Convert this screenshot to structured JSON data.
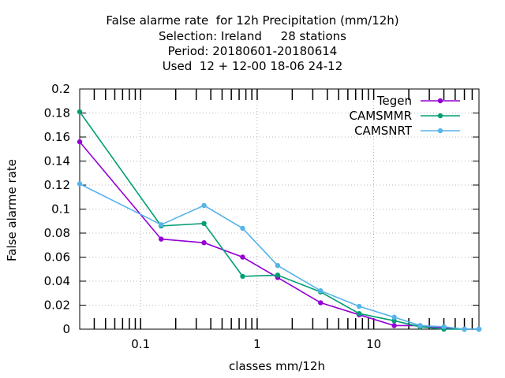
{
  "chart_data": {
    "type": "line",
    "title_lines": [
      "False alarme rate  for 12h Precipitation (mm/12h)",
      "Selection: Ireland     28 stations",
      "Period: 20180601-20180614",
      "Used  12 + 12-00 18-06 24-12"
    ],
    "xlabel": "classes mm/12h",
    "ylabel": "False alarme rate",
    "x_scale": "log",
    "xlim": [
      0.03,
      80
    ],
    "ylim": [
      0,
      0.2
    ],
    "x_ticks": [
      {
        "value": 0.1,
        "label": "0.1"
      },
      {
        "value": 1,
        "label": "1"
      },
      {
        "value": 10,
        "label": "10"
      }
    ],
    "y_ticks": [
      {
        "value": 0,
        "label": "0"
      },
      {
        "value": 0.02,
        "label": "0.02"
      },
      {
        "value": 0.04,
        "label": "0.04"
      },
      {
        "value": 0.06,
        "label": "0.06"
      },
      {
        "value": 0.08,
        "label": "0.08"
      },
      {
        "value": 0.1,
        "label": "0.1"
      },
      {
        "value": 0.12,
        "label": "0.12"
      },
      {
        "value": 0.14,
        "label": "0.14"
      },
      {
        "value": 0.16,
        "label": "0.16"
      },
      {
        "value": 0.18,
        "label": "0.18"
      },
      {
        "value": 0.2,
        "label": "0.2"
      }
    ],
    "grid": true,
    "legend_position": "top-right",
    "series": [
      {
        "name": "Tegen",
        "color": "#9400d3",
        "x": [
          0.03,
          0.15,
          0.35,
          0.75,
          1.5,
          3.5,
          7.5,
          15,
          25,
          40,
          60,
          80
        ],
        "y": [
          0.156,
          0.075,
          0.072,
          0.06,
          0.043,
          0.022,
          0.012,
          0.003,
          0.003,
          0.001,
          0.0,
          0.0
        ]
      },
      {
        "name": "CAMSMMR",
        "color": "#009e73",
        "x": [
          0.03,
          0.15,
          0.35,
          0.75,
          1.5,
          3.5,
          7.5,
          15,
          25,
          40,
          60,
          80
        ],
        "y": [
          0.181,
          0.086,
          0.088,
          0.044,
          0.045,
          0.031,
          0.013,
          0.007,
          0.002,
          0.0,
          0.0,
          0.0
        ]
      },
      {
        "name": "CAMSNRT",
        "color": "#56b4e9",
        "x": [
          0.03,
          0.15,
          0.35,
          0.75,
          1.5,
          3.5,
          7.5,
          15,
          25,
          40,
          60,
          80
        ],
        "y": [
          0.121,
          0.087,
          0.103,
          0.084,
          0.053,
          0.032,
          0.019,
          0.01,
          0.003,
          0.002,
          0.0,
          0.0
        ]
      }
    ]
  }
}
